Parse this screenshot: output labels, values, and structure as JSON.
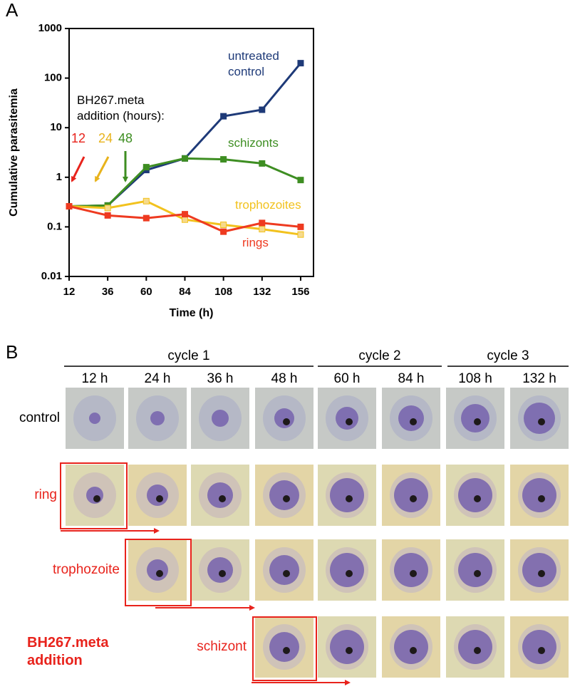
{
  "panel_labels": [
    "A",
    "B"
  ],
  "chart_data": {
    "type": "line",
    "y_label": "Cumulative parasitemia",
    "x_label": "Time (h)",
    "x": [
      12,
      36,
      60,
      84,
      108,
      132,
      156
    ],
    "xlim": [
      12,
      164
    ],
    "xticks": [
      12,
      36,
      60,
      84,
      108,
      132,
      156
    ],
    "ylim": [
      0.01,
      1000
    ],
    "yticks": [
      0.01,
      0.1,
      1,
      10,
      100,
      1000
    ],
    "log_y": true,
    "series": [
      {
        "name": "untreated control",
        "color": "#1e3a78",
        "marker_fill": "#1e3a78",
        "values": [
          0.26,
          0.27,
          1.4,
          2.4,
          17,
          23,
          200
        ]
      },
      {
        "name": "schizonts",
        "color": "#3e8e22",
        "marker_fill": "#3e8e22",
        "values": [
          0.26,
          0.27,
          1.6,
          2.4,
          2.3,
          1.9,
          0.88
        ]
      },
      {
        "name": "trophozoites",
        "color": "#f2c21e",
        "marker_fill": "#f6da8c",
        "values": [
          0.26,
          0.24,
          0.33,
          0.14,
          0.11,
          0.09,
          0.07
        ]
      },
      {
        "name": "rings",
        "color": "#ee3a20",
        "marker_fill": "#ee3a20",
        "values": [
          0.26,
          0.17,
          0.15,
          0.18,
          0.08,
          0.12,
          0.1
        ]
      }
    ],
    "annotation": {
      "text": "BH267.meta addition (hours):",
      "hours": [
        12,
        24,
        48
      ],
      "colors": [
        "#e8231c",
        "#e8b31c",
        "#3e8e22"
      ]
    }
  },
  "panel_b": {
    "cycles": [
      {
        "label": "cycle 1",
        "times": [
          "12 h",
          "24 h",
          "36 h",
          "48 h"
        ]
      },
      {
        "label": "cycle 2",
        "times": [
          "60 h",
          "84 h"
        ]
      },
      {
        "label": "cycle 3",
        "times": [
          "108 h",
          "132 h"
        ]
      }
    ],
    "rows": [
      "control",
      "ring",
      "trophozoite",
      "schizont"
    ],
    "addition_label": "BH267.meta addition"
  }
}
